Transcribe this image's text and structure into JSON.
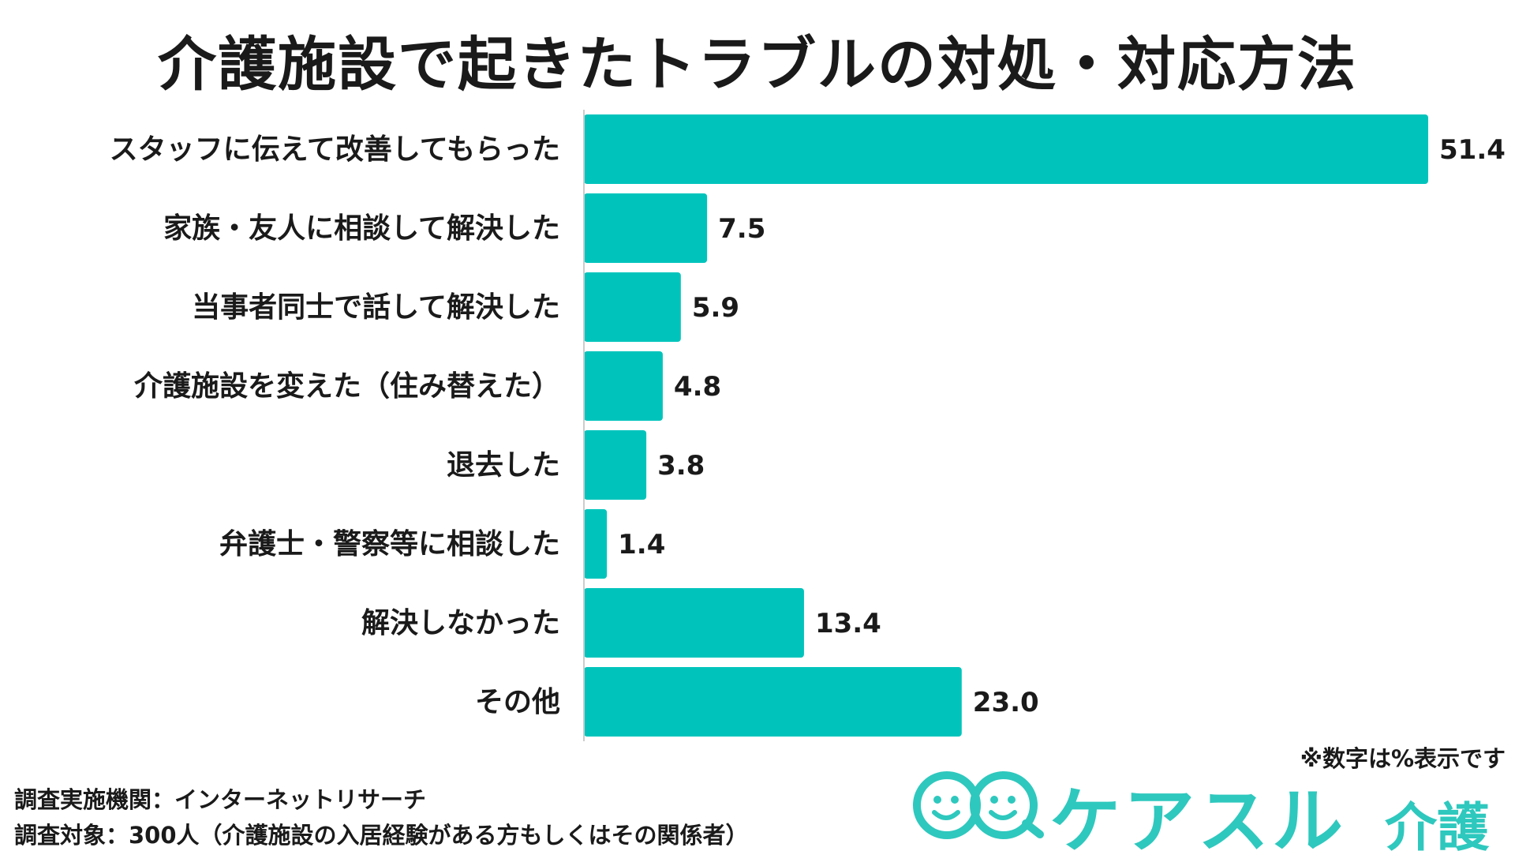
{
  "chart_data": {
    "type": "bar",
    "orientation": "horizontal",
    "title": "介護施設で起きたトラブルの対処・対応方法",
    "categories": [
      "スタッフに伝えて改善してもらった",
      "家族・友人に相談して解決した",
      "当事者同士で話して解決した",
      "介護施設を変えた（住み替えた）",
      "退去した",
      "弁護士・警察等に相談した",
      "解決しなかった",
      "その他"
    ],
    "values": [
      51.4,
      7.5,
      5.9,
      4.8,
      3.8,
      1.4,
      13.4,
      23.0
    ],
    "value_labels": [
      "51.4",
      "7.5",
      "5.9",
      "4.8",
      "3.8",
      "1.4",
      "13.4",
      "23.0"
    ],
    "xlim": [
      0,
      51.4
    ],
    "grid": false,
    "bar_color": "#00c4bc"
  },
  "note": "※数字は%表示です",
  "footer": {
    "method": "調査実施機関：インターネットリサーチ",
    "target": "調査対象：300人（介護施設の入居経験がある方もしくはその関係者）"
  },
  "logo": {
    "text": "ケアスル",
    "sub": "介護",
    "color": "#2ec8be"
  }
}
